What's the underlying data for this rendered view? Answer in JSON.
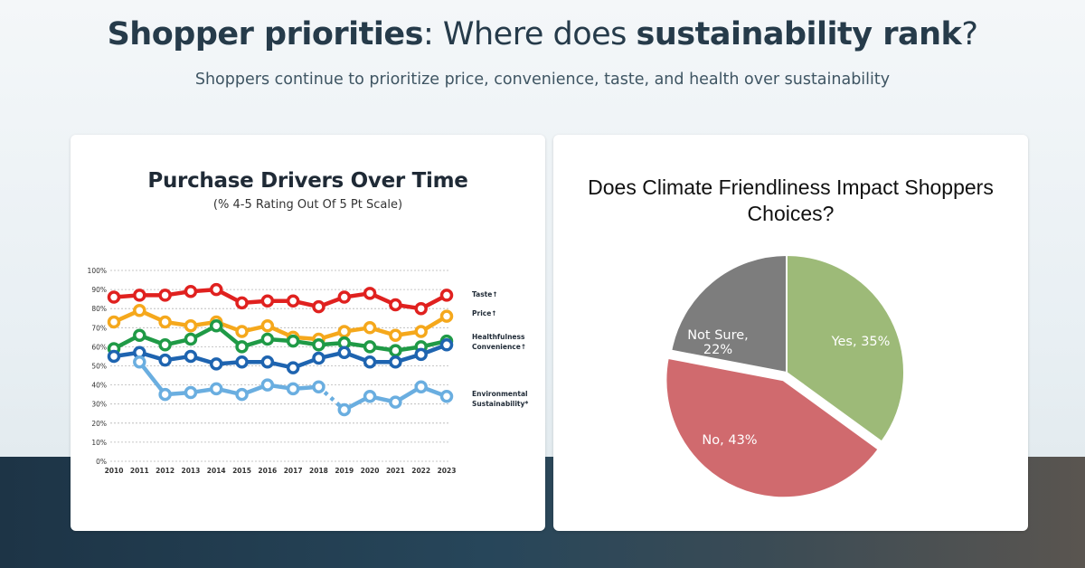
{
  "header": {
    "title_bold_1": "Shopper priorities",
    "title_light_1": ": Where does ",
    "title_bold_2": "sustainability rank",
    "title_light_2": "?",
    "subtitle": "Shoppers continue to prioritize price, convenience, taste, and health over sustainability"
  },
  "colors": {
    "taste": "#e0211f",
    "price": "#f5a81c",
    "healthfulness": "#1f9a46",
    "convenience": "#1e64b0",
    "environmental": "#6aaee0",
    "pie_yes": "#9dba78",
    "pie_no": "#d06a6e",
    "pie_not_sure": "#7d7d7d"
  },
  "chart_data": [
    {
      "type": "line",
      "title": "Purchase Drivers Over Time",
      "subtitle": "(% 4-5 Rating Out Of 5 Pt Scale)",
      "x": [
        "2010",
        "2011",
        "2012",
        "2013",
        "2014",
        "2015",
        "2016",
        "2017",
        "2018",
        "2019",
        "2020",
        "2021",
        "2022",
        "2023"
      ],
      "ylim": [
        0,
        100
      ],
      "yticks": [
        "0%",
        "10%",
        "20%",
        "30%",
        "40%",
        "50%",
        "60%",
        "70%",
        "80%",
        "90%",
        "100%"
      ],
      "grid": true,
      "legend": "right",
      "series": [
        {
          "name": "Taste↑",
          "key": "taste",
          "values": [
            86,
            87,
            87,
            89,
            90,
            83,
            84,
            84,
            81,
            86,
            88,
            82,
            80,
            87
          ]
        },
        {
          "name": "Price↑",
          "key": "price",
          "values": [
            73,
            79,
            73,
            71,
            73,
            68,
            71,
            65,
            64,
            68,
            70,
            66,
            68,
            76
          ]
        },
        {
          "name": "Healthfulness",
          "key": "healthfulness",
          "values": [
            59,
            66,
            61,
            64,
            71,
            60,
            64,
            63,
            61,
            62,
            60,
            58,
            60,
            63
          ]
        },
        {
          "name": "Convenience↑",
          "key": "convenience",
          "values": [
            55,
            57,
            53,
            55,
            51,
            52,
            52,
            49,
            54,
            57,
            52,
            52,
            56,
            61
          ]
        },
        {
          "name": "Environmental Sustainability*",
          "key": "environmental",
          "values": [
            null,
            52,
            35,
            36,
            38,
            35,
            40,
            38,
            39,
            27,
            34,
            31,
            39,
            34
          ]
        }
      ]
    },
    {
      "type": "pie",
      "title": "Does Climate Friendliness Impact Shoppers Choices?",
      "slices": [
        {
          "label": "Yes, 35%",
          "value": 35,
          "key": "pie_yes"
        },
        {
          "label": "No, 43%",
          "value": 43,
          "key": "pie_no"
        },
        {
          "label": "Not Sure, 22%",
          "label_line1": "Not Sure,",
          "label_line2": "22%",
          "value": 22,
          "key": "pie_not_sure"
        }
      ]
    }
  ]
}
